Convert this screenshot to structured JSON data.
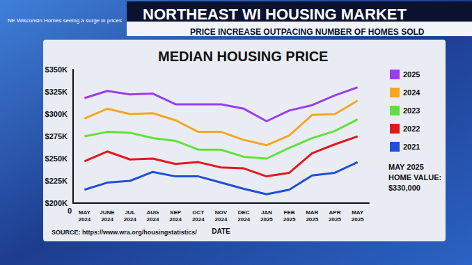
{
  "chart_data": {
    "type": "line",
    "caption": "NE Wisconsin Homes seeing a surge in prices",
    "header": "NORTHEAST WI HOUSING MARKET",
    "subtitle": "PRICE INCREASE OUTPACING NUMBER OF HOMES SOLD",
    "title": "MEDIAN HOUSING PRICE",
    "x_label": "DATE",
    "source": "SOURCE: https://www.wra.org/housingstatistics/",
    "origin_label": "0",
    "note": [
      "MAY 2025",
      "HOME VALUE:",
      "$330,000"
    ],
    "categories": [
      "MAY 2024",
      "JUNE 2024",
      "JUL 2024",
      "AUG 2024",
      "SEP 2024",
      "OCT 2024",
      "NOV 2024",
      "DEC 2024",
      "JAN 2025",
      "FEB 2025",
      "MAR 2025",
      "APR 2025",
      "MAY 2025"
    ],
    "series": [
      {
        "name": "2025",
        "color": "#9b3cf0",
        "values": [
          318000,
          326000,
          322000,
          323000,
          311000,
          311000,
          311000,
          306000,
          292000,
          304000,
          310000,
          321000,
          330000
        ]
      },
      {
        "name": "2024",
        "color": "#f5a623",
        "values": [
          295000,
          306000,
          300000,
          301000,
          293000,
          280000,
          280000,
          271000,
          265000,
          276000,
          299000,
          300000,
          315000
        ]
      },
      {
        "name": "2023",
        "color": "#62e03a",
        "values": [
          275000,
          280000,
          279000,
          273000,
          270000,
          260000,
          260000,
          252000,
          250000,
          262000,
          273000,
          281000,
          294000
        ]
      },
      {
        "name": "2022",
        "color": "#e0191f",
        "values": [
          247000,
          258000,
          249000,
          250000,
          244000,
          246000,
          240000,
          239000,
          230000,
          234000,
          256000,
          266000,
          275000
        ]
      },
      {
        "name": "2021",
        "color": "#1f4fd8",
        "values": [
          215000,
          223000,
          225000,
          235000,
          230000,
          230000,
          223000,
          216000,
          210000,
          215000,
          231000,
          234000,
          246000
        ]
      }
    ],
    "ylim": [
      200000,
      350000
    ],
    "yticks": [
      {
        "value": 200000,
        "label": "$200K"
      },
      {
        "value": 225000,
        "label": "$225K"
      },
      {
        "value": 250000,
        "label": "$250K"
      },
      {
        "value": 275000,
        "label": "$275K"
      },
      {
        "value": 300000,
        "label": "$300K"
      },
      {
        "value": 325000,
        "label": "$325K"
      },
      {
        "value": 350000,
        "label": "$350K"
      }
    ],
    "grid": false,
    "legend": "right",
    "data_labels": false
  }
}
